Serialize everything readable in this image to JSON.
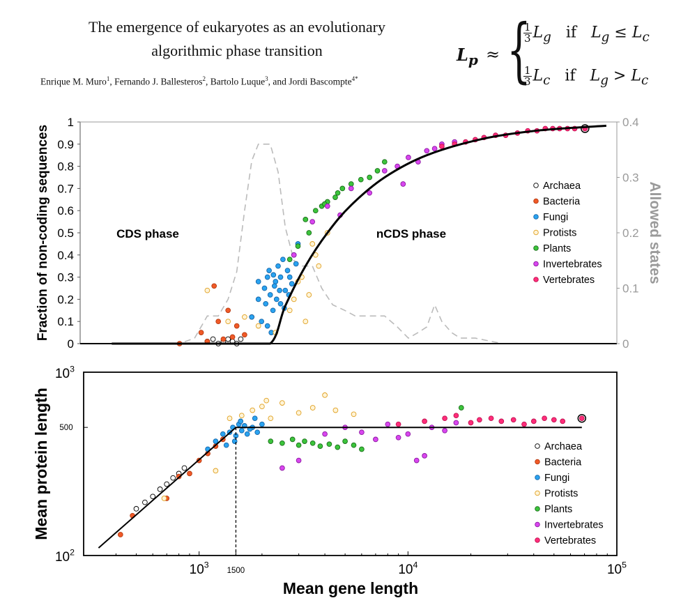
{
  "header": {
    "title_line1": "The emergence of eukaryotes as an evolutionary",
    "title_line2": "algorithmic phase transition",
    "authors": [
      {
        "name": "Enrique M. Muro",
        "sup": "1",
        "sep": ", "
      },
      {
        "name": "Fernando J. Ballesteros",
        "sup": "2",
        "sep": ", "
      },
      {
        "name": "Bartolo Luque",
        "sup": "3",
        "sep": ", and "
      },
      {
        "name": "Jordi Bascompte",
        "sup": "4*",
        "sep": ""
      }
    ],
    "formula": {
      "lhs": "L",
      "lhs_sub": "p",
      "approx": "≈",
      "case1": {
        "num": "1",
        "den": "3",
        "var": "L",
        "sub": "g",
        "cond_word": "if",
        "cond": "L",
        "cond_sub": "g",
        "op": "≤",
        "rhs": "L",
        "rhs_sub": "c"
      },
      "case2": {
        "num": "1",
        "den": "3",
        "var": "L",
        "sub": "c",
        "cond_word": "if",
        "cond": "L",
        "cond_sub": "g",
        "op": ">",
        "rhs": "L",
        "rhs_sub": "c"
      }
    }
  },
  "colors": {
    "Archaea": {
      "fill": "#ffffff",
      "stroke": "#000000"
    },
    "Bacteria": {
      "fill": "#f05a28",
      "stroke": "#b53a10"
    },
    "Fungi": {
      "fill": "#2aa3f0",
      "stroke": "#1565a8"
    },
    "Protists": {
      "fill": "#fff4d8",
      "stroke": "#e0a020"
    },
    "Plants": {
      "fill": "#3cc43c",
      "stroke": "#1a6e1a"
    },
    "Invertebrates": {
      "fill": "#d946ef",
      "stroke": "#8b1aa0"
    },
    "Vertebrates": {
      "fill": "#ff2d7a",
      "stroke": "#c01050"
    },
    "allowed": "#bbbbbb",
    "axis": "#000000"
  },
  "chart_data": [
    {
      "type": "scatter",
      "id": "top",
      "title": "",
      "ylabel": "Fraction of non-coding sequences",
      "y2label": "Allowed states",
      "xscale": "log",
      "xlim": [
        150,
        100000
      ],
      "ylim": [
        0,
        1
      ],
      "y2lim": [
        0,
        0.4
      ],
      "yticks": [
        "0",
        "0.1",
        "0.2",
        "0.3",
        "0.4",
        "0.5",
        "0.6",
        "0.7",
        "0.8",
        "0.9",
        "1"
      ],
      "y2ticks": [
        "0",
        "0.1",
        "0.2",
        "0.3",
        "0.4"
      ],
      "annotations": [
        "CDS phase",
        "nCDS phase"
      ],
      "legend": [
        "Archaea",
        "Bacteria",
        "Fungi",
        "Protists",
        "Plants",
        "Invertebrates",
        "Vertebrates"
      ],
      "legend_position": "right",
      "model_curve": {
        "name": "model",
        "x": [
          220,
          1000,
          1500,
          1800,
          2300,
          3000,
          4000,
          6000,
          10000,
          20000,
          40000,
          88000
        ],
        "y": [
          0,
          0,
          0,
          0.17,
          0.35,
          0.5,
          0.625,
          0.75,
          0.85,
          0.925,
          0.963,
          0.983
        ]
      },
      "allowed_states": {
        "name": "Allowed states",
        "x": [
          250,
          500,
          600,
          700,
          800,
          900,
          1000,
          1100,
          1200,
          1300,
          1400,
          1500,
          1650,
          1800,
          2000,
          2200,
          2500,
          2800,
          3200,
          3700,
          4200,
          5000,
          6000,
          7000,
          8000,
          9000,
          10000,
          11000,
          12000,
          13500,
          15000,
          18000,
          25000,
          35000,
          60000
        ],
        "y": [
          0,
          0,
          0.01,
          0.05,
          0.05,
          0.08,
          0.13,
          0.24,
          0.33,
          0.36,
          0.36,
          0.36,
          0.31,
          0.21,
          0.15,
          0.14,
          0.14,
          0.1,
          0.07,
          0.06,
          0.05,
          0.05,
          0.05,
          0.03,
          0.01,
          0.02,
          0.03,
          0.07,
          0.04,
          0.02,
          0.01,
          0.01,
          0,
          0,
          0
        ]
      },
      "series": [
        {
          "name": "Archaea",
          "x": [
            700,
            750,
            800,
            850,
            900,
            950,
            1000,
            1050
          ],
          "y": [
            0.01,
            0.02,
            0.0,
            0.01,
            0.02,
            0.01,
            0.0,
            0.02
          ]
        },
        {
          "name": "Bacteria",
          "x": [
            500,
            650,
            700,
            760,
            800,
            850,
            900,
            950,
            1000,
            1100,
            1200
          ],
          "y": [
            0.0,
            0.05,
            0.01,
            0.26,
            0.1,
            0.02,
            0.15,
            0.03,
            0.08,
            0.04,
            0.12
          ]
        },
        {
          "name": "Fungi",
          "x": [
            1200,
            1300,
            1400,
            1450,
            1500,
            1550,
            1600,
            1650,
            1700,
            1800,
            1900,
            2000,
            1350,
            1420,
            1480,
            1520,
            1580,
            1620,
            1700,
            1750,
            1850,
            1950,
            2100,
            1300,
            1450,
            1560,
            1680,
            1780,
            1880,
            2050
          ],
          "y": [
            0.12,
            0.2,
            0.25,
            0.3,
            0.22,
            0.15,
            0.28,
            0.35,
            0.18,
            0.24,
            0.3,
            0.4,
            0.1,
            0.18,
            0.33,
            0.05,
            0.26,
            0.2,
            0.3,
            0.38,
            0.33,
            0.27,
            0.45,
            0.28,
            0.08,
            0.31,
            0.24,
            0.16,
            0.22,
            0.36
          ]
        },
        {
          "name": "Protists",
          "x": [
            700,
            900,
            1100,
            1300,
            1600,
            2000,
            2200,
            2500,
            2700,
            3000,
            2400,
            2600,
            1900,
            2100,
            2300
          ],
          "y": [
            0.24,
            0.1,
            0.12,
            0.08,
            0.05,
            0.2,
            0.3,
            0.45,
            0.35,
            0.5,
            0.22,
            0.4,
            0.15,
            0.28,
            0.1
          ]
        },
        {
          "name": "Plants",
          "x": [
            1900,
            2100,
            2300,
            2600,
            2800,
            3000,
            3300,
            3600,
            4000,
            4500,
            5000,
            5500,
            6000,
            2400,
            2900,
            3400
          ],
          "y": [
            0.38,
            0.44,
            0.56,
            0.6,
            0.62,
            0.64,
            0.66,
            0.7,
            0.72,
            0.74,
            0.75,
            0.78,
            0.82,
            0.5,
            0.63,
            0.68
          ]
        },
        {
          "name": "Invertebrates",
          "x": [
            2000,
            2500,
            3000,
            3500,
            4000,
            5000,
            6000,
            7000,
            8000,
            9000,
            10000,
            12000,
            14000,
            7500,
            11000
          ],
          "y": [
            0.4,
            0.55,
            0.62,
            0.58,
            0.7,
            0.68,
            0.78,
            0.8,
            0.84,
            0.82,
            0.87,
            0.9,
            0.91,
            0.72,
            0.88
          ]
        },
        {
          "name": "Vertebrates",
          "x": [
            12000,
            14000,
            16000,
            18000,
            20000,
            23000,
            26000,
            30000,
            34000,
            38000,
            42000,
            46000,
            50000,
            55000,
            60000,
            68000
          ],
          "y": [
            0.89,
            0.9,
            0.91,
            0.92,
            0.93,
            0.94,
            0.94,
            0.95,
            0.96,
            0.96,
            0.97,
            0.97,
            0.97,
            0.97,
            0.97,
            0.97
          ]
        }
      ]
    },
    {
      "type": "scatter",
      "id": "bottom",
      "title": "",
      "xlabel": "Mean gene length",
      "ylabel": "Mean protein length",
      "xscale": "log",
      "yscale": "log",
      "xlim": [
        280,
        100000
      ],
      "ylim": [
        100,
        1000
      ],
      "xticks": [
        {
          "value": 1000,
          "base": "10",
          "exp": "3"
        },
        {
          "value": 1500,
          "label": "1500"
        },
        {
          "value": 10000,
          "base": "10",
          "exp": "4"
        },
        {
          "value": 100000,
          "base": "10",
          "exp": "5"
        }
      ],
      "yticks": [
        {
          "value": 100,
          "base": "10",
          "exp": "2"
        },
        {
          "value": 500,
          "label": "500"
        },
        {
          "value": 1000,
          "base": "10",
          "exp": "3"
        }
      ],
      "legend": [
        "Archaea",
        "Bacteria",
        "Fungi",
        "Protists",
        "Plants",
        "Invertebrates",
        "Vertebrates"
      ],
      "legend_position": "right",
      "model_curve": {
        "name": "model",
        "x": [
          330,
          1500,
          68000
        ],
        "y": [
          110,
          500,
          500
        ]
      },
      "crossover_line": {
        "x": 1500
      },
      "series": [
        {
          "name": "Archaea",
          "x": [
            500,
            550,
            600,
            650,
            700,
            750,
            800,
            850
          ],
          "y": [
            180,
            195,
            210,
            230,
            245,
            265,
            280,
            300
          ]
        },
        {
          "name": "Bacteria",
          "x": [
            420,
            480,
            700,
            800,
            900,
            1000,
            1100,
            1200,
            1300
          ],
          "y": [
            130,
            165,
            205,
            270,
            280,
            330,
            360,
            395,
            430
          ]
        },
        {
          "name": "Fungi",
          "x": [
            1100,
            1200,
            1300,
            1400,
            1450,
            1500,
            1550,
            1600,
            1650,
            1700,
            1800,
            1900,
            2000,
            1350,
            1480,
            1580,
            1750,
            1850
          ],
          "y": [
            380,
            420,
            460,
            470,
            500,
            450,
            520,
            480,
            510,
            460,
            500,
            470,
            520,
            400,
            420,
            540,
            490,
            560
          ]
        },
        {
          "name": "Protists",
          "x": [
            680,
            1200,
            1400,
            1600,
            1800,
            2000,
            2200,
            2500,
            3000,
            3500,
            4000,
            4500,
            5500,
            2100
          ],
          "y": [
            205,
            290,
            560,
            580,
            620,
            650,
            560,
            680,
            600,
            640,
            750,
            620,
            590,
            700
          ]
        },
        {
          "name": "Plants",
          "x": [
            2200,
            2500,
            2800,
            3000,
            3200,
            3500,
            3800,
            4200,
            4600,
            5000,
            5500,
            6000,
            18000
          ],
          "y": [
            420,
            410,
            430,
            400,
            420,
            410,
            395,
            405,
            390,
            420,
            400,
            380,
            640
          ]
        },
        {
          "name": "Invertebrates",
          "x": [
            2500,
            3000,
            4000,
            5000,
            6000,
            7000,
            8000,
            9000,
            10000,
            11000,
            12000,
            13000,
            15000,
            17000
          ],
          "y": [
            300,
            330,
            460,
            500,
            470,
            430,
            520,
            440,
            460,
            330,
            350,
            500,
            480,
            530
          ]
        },
        {
          "name": "Vertebrates",
          "x": [
            9000,
            12000,
            15000,
            17000,
            20000,
            22000,
            25000,
            28000,
            32000,
            36000,
            40000,
            45000,
            50000,
            55000,
            68000
          ],
          "y": [
            520,
            540,
            560,
            580,
            530,
            550,
            560,
            540,
            550,
            520,
            540,
            560,
            550,
            540,
            560
          ]
        }
      ]
    }
  ]
}
